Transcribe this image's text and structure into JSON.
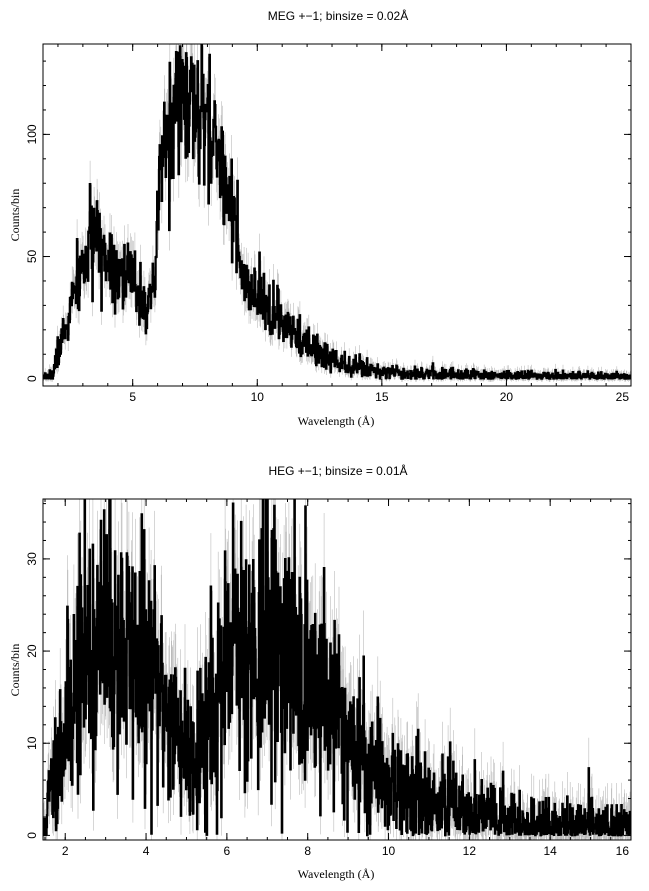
{
  "chart_data": [
    {
      "type": "line",
      "title": "MEG +−1; binsize = 0.02Å",
      "xlabel": "Wavelength (Å)",
      "ylabel": "Counts/bin",
      "xlim": [
        1.4,
        25
      ],
      "ylim": [
        -3,
        137
      ],
      "xticks": [
        5,
        10,
        15,
        20,
        25
      ],
      "yticks": [
        0,
        50,
        100
      ],
      "x_minor_step": 1,
      "y_minor_step": 10,
      "binsize": 0.02,
      "error_color": "#bbbbbb",
      "line_color": "#000000",
      "profile": [
        [
          1.4,
          0
        ],
        [
          1.8,
          2
        ],
        [
          2.0,
          12
        ],
        [
          2.3,
          20
        ],
        [
          2.6,
          33
        ],
        [
          3.0,
          46
        ],
        [
          3.4,
          55
        ],
        [
          3.8,
          52
        ],
        [
          4.2,
          48
        ],
        [
          4.6,
          43
        ],
        [
          5.0,
          40
        ],
        [
          5.4,
          34
        ],
        [
          5.7,
          28
        ],
        [
          5.9,
          40
        ],
        [
          6.0,
          65
        ],
        [
          6.1,
          88
        ],
        [
          6.4,
          100
        ],
        [
          6.8,
          110
        ],
        [
          7.2,
          112
        ],
        [
          7.6,
          106
        ],
        [
          8.0,
          101
        ],
        [
          8.5,
          90
        ],
        [
          8.9,
          78
        ],
        [
          9.1,
          63
        ],
        [
          9.3,
          44
        ],
        [
          9.6,
          34
        ],
        [
          10.0,
          33
        ],
        [
          10.6,
          27
        ],
        [
          11.2,
          20
        ],
        [
          12.0,
          13
        ],
        [
          13.0,
          8
        ],
        [
          14.0,
          5
        ],
        [
          15.0,
          3
        ],
        [
          17.0,
          2
        ],
        [
          20.0,
          1.2
        ],
        [
          25.0,
          0.6
        ]
      ],
      "noise_scale": 0.13,
      "noise_floor": 0.6,
      "spikes": [
        [
          3.3,
          68
        ],
        [
          3.5,
          64
        ],
        [
          6.9,
          136
        ],
        [
          7.0,
          129
        ],
        [
          7.3,
          126
        ],
        [
          6.7,
          120
        ],
        [
          7.8,
          120
        ],
        [
          8.3,
          112
        ],
        [
          10.8,
          38
        ],
        [
          11.7,
          26
        ],
        [
          12.4,
          18
        ],
        [
          13.5,
          11
        ]
      ],
      "seed": 7
    },
    {
      "type": "line",
      "title": "HEG +−1; binsize = 0.01Å",
      "xlabel": "Wavelength (Å)",
      "ylabel": "Counts/bin",
      "xlim": [
        1.45,
        16
      ],
      "ylim": [
        -0.5,
        36.5
      ],
      "xticks": [
        2,
        4,
        6,
        8,
        10,
        12,
        14,
        16
      ],
      "yticks": [
        0,
        10,
        20,
        30
      ],
      "x_minor_step": 0.5,
      "y_minor_step": 2,
      "binsize": 0.01,
      "error_color": "#bbbbbb",
      "line_color": "#000000",
      "profile": [
        [
          1.45,
          0
        ],
        [
          1.6,
          4
        ],
        [
          1.8,
          8
        ],
        [
          2.0,
          12
        ],
        [
          2.3,
          17
        ],
        [
          2.6,
          20
        ],
        [
          3.0,
          21
        ],
        [
          3.5,
          20
        ],
        [
          4.0,
          18
        ],
        [
          4.4,
          15
        ],
        [
          4.8,
          11
        ],
        [
          5.1,
          9
        ],
        [
          5.4,
          11
        ],
        [
          5.8,
          15
        ],
        [
          6.2,
          19
        ],
        [
          6.6,
          21
        ],
        [
          7.0,
          21
        ],
        [
          7.4,
          20
        ],
        [
          7.8,
          18
        ],
        [
          8.2,
          16
        ],
        [
          8.6,
          14
        ],
        [
          9.0,
          11
        ],
        [
          9.5,
          8
        ],
        [
          10.0,
          6
        ],
        [
          10.5,
          4.5
        ],
        [
          11.0,
          3.5
        ],
        [
          11.5,
          3
        ],
        [
          12.0,
          2.5
        ],
        [
          12.5,
          2
        ],
        [
          13.0,
          1.3
        ],
        [
          14.0,
          1
        ],
        [
          15.0,
          0.8
        ],
        [
          16.0,
          0.8
        ]
      ],
      "noise_scale": 0.3,
      "noise_floor": 1.2,
      "spikes": [
        [
          2.6,
          31
        ],
        [
          3.4,
          30
        ],
        [
          6.15,
          36
        ],
        [
          6.35,
          34
        ],
        [
          6.8,
          32
        ],
        [
          7.2,
          32
        ],
        [
          8.4,
          29
        ],
        [
          5.6,
          27
        ],
        [
          10.1,
          11
        ],
        [
          10.9,
          9
        ],
        [
          11.6,
          8
        ],
        [
          12.3,
          6
        ],
        [
          13.2,
          3
        ],
        [
          14.1,
          2
        ],
        [
          15.4,
          2
        ]
      ],
      "seed": 11
    }
  ]
}
